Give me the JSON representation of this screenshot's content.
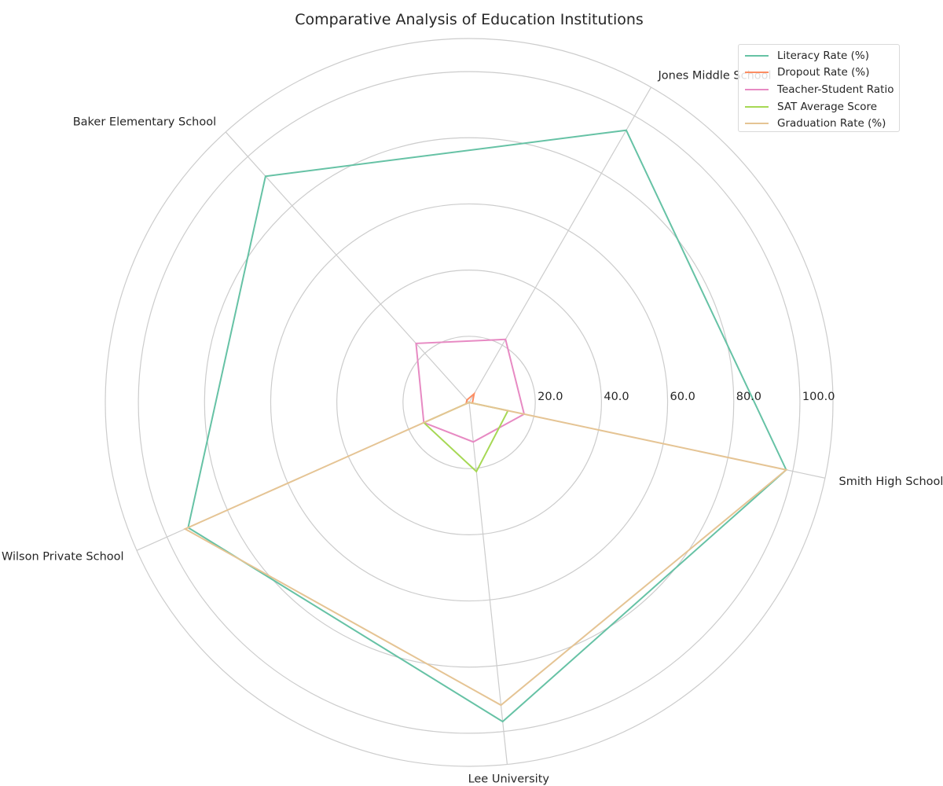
{
  "chart_data": {
    "type": "radar",
    "title": "Comparative Analysis of Education Institutions",
    "categories": [
      "Smith High School",
      "Jones Middle School",
      "Baker Elementary School",
      "Wilson Private School",
      "Lee University"
    ],
    "radial_ticks": [
      "20.0",
      "40.0",
      "60.0",
      "80.0",
      "100.0"
    ],
    "rlim": [
      0,
      110
    ],
    "grid": true,
    "legend_position": "top-right",
    "series": [
      {
        "name": "Literacy Rate (%)",
        "color": "#66c2a5",
        "values": [
          98,
          95,
          92,
          93,
          97
        ]
      },
      {
        "name": "Dropout Rate (%)",
        "color": "#fc8d62",
        "values": [
          1,
          3,
          1,
          1,
          0
        ]
      },
      {
        "name": "Teacher-Student Ratio",
        "color": "#e78ac3",
        "values": [
          17,
          22,
          24,
          15,
          12
        ]
      },
      {
        "name": "SAT Average Score",
        "color": "#a6d854",
        "values": [
          12,
          0,
          0,
          15,
          21
        ]
      },
      {
        "name": "Graduation Rate (%)",
        "color": "#e5c494",
        "values": [
          98,
          0,
          0,
          94,
          92
        ]
      }
    ]
  }
}
